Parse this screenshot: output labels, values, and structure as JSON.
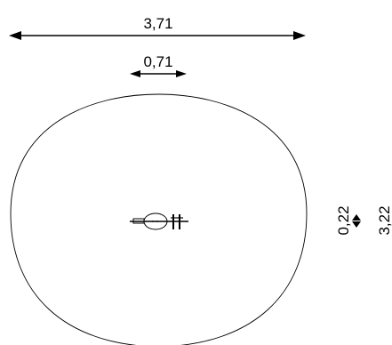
{
  "dimensions": {
    "overall_width": "3,71",
    "item_width": "0,71",
    "item_depth": "0,22",
    "overall_depth": "3,22"
  },
  "colors": {
    "line": "#000000",
    "background": "#ffffff"
  }
}
